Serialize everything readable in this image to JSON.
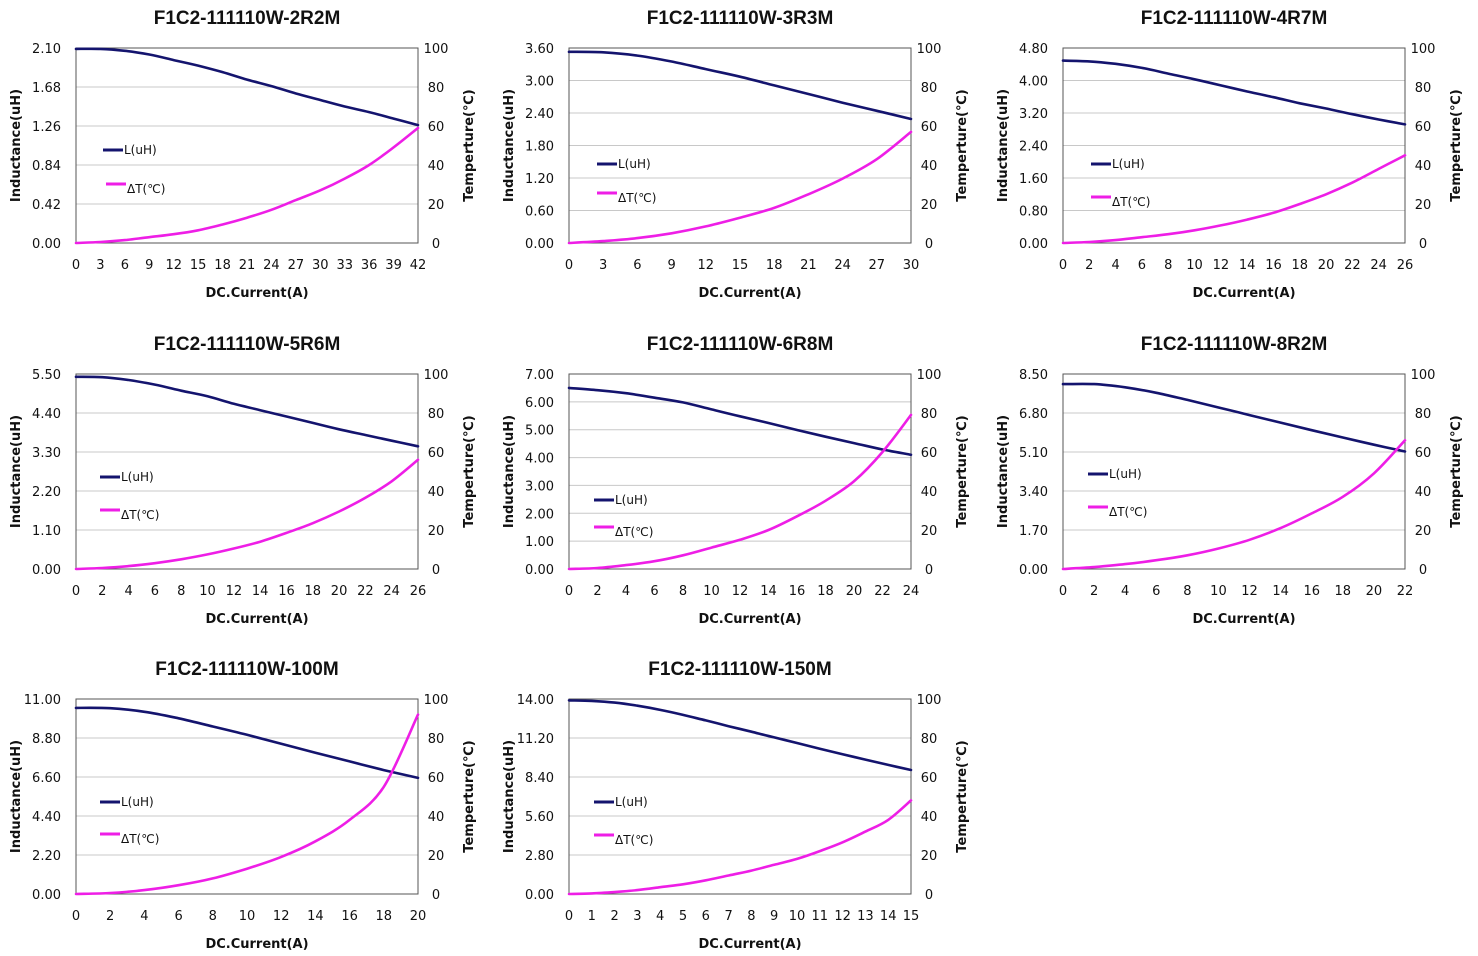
{
  "colors": {
    "inductance": "#14146e",
    "temperature": "#ee1ee6"
  },
  "common": {
    "xlabel": "DC.Current(A)",
    "ylabel": "Inductance(uH)",
    "y2label": "Temperture(℃)",
    "legend_l": "L(uH)",
    "legend_t": "ΔT(℃)",
    "y2ticks": [
      "0",
      "20",
      "40",
      "60",
      "80",
      "100"
    ]
  },
  "chart_data": [
    {
      "type": "line",
      "title": "F1C2-111110W-2R2M",
      "xlabel": "DC.Current(A)",
      "ylabel": "Inductance(uH)",
      "y2label": "Temperture(℃)",
      "xlim": [
        0,
        42
      ],
      "ylim": [
        0,
        2.1
      ],
      "y2lim": [
        0,
        100
      ],
      "xticks": [
        "0",
        "3",
        "6",
        "9",
        "12",
        "15",
        "18",
        "21",
        "24",
        "27",
        "30",
        "33",
        "36",
        "39",
        "42"
      ],
      "yticks": [
        "0.00",
        "0.42",
        "0.84",
        "1.26",
        "1.68",
        "2.10"
      ],
      "series": [
        {
          "name": "L(uH)",
          "axis": "left",
          "x": [
            0,
            3,
            6,
            9,
            12,
            15,
            18,
            21,
            24,
            27,
            30,
            33,
            36,
            39,
            42
          ],
          "y": [
            2.09,
            2.09,
            2.07,
            2.03,
            1.97,
            1.91,
            1.84,
            1.76,
            1.69,
            1.61,
            1.54,
            1.47,
            1.41,
            1.34,
            1.27
          ]
        },
        {
          "name": "ΔT(℃)",
          "axis": "right",
          "x": [
            0,
            3,
            6,
            9,
            12,
            15,
            18,
            21,
            24,
            27,
            30,
            33,
            36,
            39,
            42
          ],
          "y": [
            0,
            0.5,
            1.5,
            3,
            4.5,
            6.5,
            9.5,
            13,
            17,
            22,
            27,
            33,
            40,
            49,
            59
          ]
        }
      ]
    },
    {
      "type": "line",
      "title": "F1C2-111110W-3R3M",
      "xlabel": "DC.Current(A)",
      "ylabel": "Inductance(uH)",
      "y2label": "Temperture(℃)",
      "xlim": [
        0,
        30
      ],
      "ylim": [
        0,
        3.6
      ],
      "y2lim": [
        0,
        100
      ],
      "xticks": [
        "0",
        "3",
        "6",
        "9",
        "12",
        "15",
        "18",
        "21",
        "24",
        "27",
        "30"
      ],
      "yticks": [
        "0.00",
        "0.60",
        "1.20",
        "1.80",
        "2.40",
        "3.00",
        "3.60"
      ],
      "series": [
        {
          "name": "L(uH)",
          "axis": "left",
          "x": [
            0,
            3,
            6,
            9,
            12,
            15,
            18,
            21,
            24,
            27,
            30
          ],
          "y": [
            3.53,
            3.52,
            3.46,
            3.35,
            3.21,
            3.07,
            2.91,
            2.75,
            2.59,
            2.44,
            2.29
          ]
        },
        {
          "name": "ΔT(℃)",
          "axis": "right",
          "x": [
            0,
            3,
            6,
            9,
            12,
            15,
            18,
            21,
            24,
            27,
            30
          ],
          "y": [
            0,
            1,
            2.5,
            5,
            8.5,
            13,
            18,
            25,
            33,
            43,
            57
          ]
        }
      ]
    },
    {
      "type": "line",
      "title": "F1C2-111110W-4R7M",
      "xlabel": "DC.Current(A)",
      "ylabel": "Inductance(uH)",
      "y2label": "Temperture(℃)",
      "xlim": [
        0,
        26
      ],
      "ylim": [
        0,
        4.8
      ],
      "y2lim": [
        0,
        100
      ],
      "xticks": [
        "0",
        "2",
        "4",
        "6",
        "8",
        "10",
        "12",
        "14",
        "16",
        "18",
        "20",
        "22",
        "24",
        "26"
      ],
      "yticks": [
        "0.00",
        "0.80",
        "1.60",
        "2.40",
        "3.20",
        "4.00",
        "4.80"
      ],
      "series": [
        {
          "name": "L(uH)",
          "axis": "left",
          "x": [
            0,
            2,
            4,
            6,
            8,
            10,
            12,
            14,
            16,
            18,
            20,
            22,
            24,
            26
          ],
          "y": [
            4.49,
            4.47,
            4.41,
            4.31,
            4.17,
            4.03,
            3.88,
            3.73,
            3.59,
            3.44,
            3.31,
            3.17,
            3.04,
            2.92
          ]
        },
        {
          "name": "ΔT(℃)",
          "axis": "right",
          "x": [
            0,
            2,
            4,
            6,
            8,
            10,
            12,
            14,
            16,
            18,
            20,
            22,
            24,
            26
          ],
          "y": [
            0,
            0.5,
            1.5,
            3,
            4.5,
            6.5,
            9,
            12,
            15.5,
            20,
            25,
            31,
            38,
            45
          ]
        }
      ]
    },
    {
      "type": "line",
      "title": "F1C2-111110W-5R6M",
      "xlabel": "DC.Current(A)",
      "ylabel": "Inductance(uH)",
      "y2label": "Temperture(℃)",
      "xlim": [
        0,
        26
      ],
      "ylim": [
        0,
        5.5
      ],
      "y2lim": [
        0,
        100
      ],
      "xticks": [
        "0",
        "2",
        "4",
        "6",
        "8",
        "10",
        "12",
        "14",
        "16",
        "18",
        "20",
        "22",
        "24",
        "26"
      ],
      "yticks": [
        "0.00",
        "1.10",
        "2.20",
        "3.30",
        "4.40",
        "5.50"
      ],
      "series": [
        {
          "name": "L(uH)",
          "axis": "left",
          "x": [
            0,
            2,
            4,
            6,
            8,
            10,
            12,
            14,
            16,
            18,
            20,
            22,
            24,
            26
          ],
          "y": [
            5.42,
            5.41,
            5.33,
            5.2,
            5.03,
            4.87,
            4.66,
            4.48,
            4.3,
            4.12,
            3.94,
            3.78,
            3.62,
            3.46
          ]
        },
        {
          "name": "ΔT(℃)",
          "axis": "right",
          "x": [
            0,
            2,
            4,
            6,
            8,
            10,
            12,
            14,
            16,
            18,
            20,
            22,
            24,
            26
          ],
          "y": [
            0,
            0.5,
            1.5,
            3,
            5,
            7.5,
            10.5,
            14,
            18.5,
            23.5,
            29.5,
            36.5,
            45,
            56
          ]
        }
      ]
    },
    {
      "type": "line",
      "title": "F1C2-111110W-6R8M",
      "xlabel": "DC.Current(A)",
      "ylabel": "Inductance(uH)",
      "y2label": "Temperture(℃)",
      "xlim": [
        0,
        24
      ],
      "ylim": [
        0,
        7
      ],
      "y2lim": [
        0,
        100
      ],
      "xticks": [
        "0",
        "2",
        "4",
        "6",
        "8",
        "10",
        "12",
        "14",
        "16",
        "18",
        "20",
        "22",
        "24"
      ],
      "yticks": [
        "0.00",
        "1.00",
        "2.00",
        "3.00",
        "4.00",
        "5.00",
        "6.00",
        "7.00"
      ],
      "series": [
        {
          "name": "L(uH)",
          "axis": "left",
          "x": [
            0,
            2,
            4,
            6,
            8,
            10,
            12,
            14,
            16,
            18,
            20,
            22,
            24
          ],
          "y": [
            6.5,
            6.42,
            6.31,
            6.15,
            5.98,
            5.73,
            5.48,
            5.24,
            4.99,
            4.75,
            4.52,
            4.29,
            4.1
          ]
        },
        {
          "name": "ΔT(℃)",
          "axis": "right",
          "x": [
            0,
            2,
            4,
            6,
            8,
            10,
            12,
            14,
            16,
            18,
            20,
            22,
            24
          ],
          "y": [
            0,
            0.5,
            2,
            4,
            7,
            11,
            15,
            20,
            27,
            35,
            45,
            60,
            79
          ]
        }
      ]
    },
    {
      "type": "line",
      "title": "F1C2-111110W-8R2M",
      "xlabel": "DC.Current(A)",
      "ylabel": "Inductance(uH)",
      "y2label": "Temperture(℃)",
      "xlim": [
        0,
        22
      ],
      "ylim": [
        0,
        8.5
      ],
      "y2lim": [
        0,
        100
      ],
      "xticks": [
        "0",
        "2",
        "4",
        "6",
        "8",
        "10",
        "12",
        "14",
        "16",
        "18",
        "20",
        "22"
      ],
      "yticks": [
        "0.00",
        "1.70",
        "3.40",
        "5.10",
        "6.80",
        "8.50"
      ],
      "series": [
        {
          "name": "L(uH)",
          "axis": "left",
          "x": [
            0,
            2,
            4,
            6,
            8,
            10,
            12,
            14,
            16,
            18,
            20,
            22
          ],
          "y": [
            8.06,
            8.06,
            7.92,
            7.68,
            7.37,
            7.04,
            6.71,
            6.38,
            6.05,
            5.73,
            5.42,
            5.12
          ]
        },
        {
          "name": "ΔT(℃)",
          "axis": "right",
          "x": [
            0,
            2,
            4,
            6,
            8,
            10,
            12,
            14,
            16,
            18,
            20,
            22
          ],
          "y": [
            0,
            1,
            2.5,
            4.5,
            7,
            10.5,
            15,
            21,
            28.5,
            37,
            49,
            66
          ]
        }
      ]
    },
    {
      "type": "line",
      "title": "F1C2-111110W-100M",
      "xlabel": "DC.Current(A)",
      "ylabel": "Inductance(uH)",
      "y2label": "Temperture(℃)",
      "xlim": [
        0,
        20
      ],
      "ylim": [
        0,
        11
      ],
      "y2lim": [
        0,
        100
      ],
      "xticks": [
        "0",
        "2",
        "4",
        "6",
        "8",
        "10",
        "12",
        "14",
        "16",
        "18",
        "20"
      ],
      "yticks": [
        "0.00",
        "2.20",
        "4.40",
        "6.60",
        "8.80",
        "11.00"
      ],
      "series": [
        {
          "name": "L(uH)",
          "axis": "left",
          "x": [
            0,
            2,
            4,
            6,
            8,
            10,
            12,
            14,
            16,
            18,
            20
          ],
          "y": [
            10.5,
            10.48,
            10.28,
            9.91,
            9.45,
            8.98,
            8.48,
            7.97,
            7.48,
            6.99,
            6.55
          ]
        },
        {
          "name": "ΔT(℃)",
          "axis": "right",
          "x": [
            0,
            2,
            4,
            6,
            8,
            10,
            12,
            14,
            16,
            18,
            20
          ],
          "y": [
            0,
            0.5,
            2,
            4.5,
            8,
            13,
            19,
            27,
            38,
            55,
            92
          ]
        }
      ]
    },
    {
      "type": "line",
      "title": "F1C2-111110W-150M",
      "xlabel": "DC.Current(A)",
      "ylabel": "Inductance(uH)",
      "y2label": "Temperture(℃)",
      "xlim": [
        0,
        15
      ],
      "ylim": [
        0,
        14
      ],
      "y2lim": [
        0,
        100
      ],
      "xticks": [
        "0",
        "1",
        "2",
        "3",
        "4",
        "5",
        "6",
        "7",
        "8",
        "9",
        "10",
        "11",
        "12",
        "13",
        "14",
        "15"
      ],
      "yticks": [
        "0.00",
        "2.80",
        "5.60",
        "8.40",
        "11.20",
        "14.00"
      ],
      "series": [
        {
          "name": "L(uH)",
          "axis": "left",
          "x": [
            0,
            1,
            2,
            3,
            4,
            5,
            6,
            7,
            8,
            9,
            10,
            11,
            12,
            13,
            14,
            15
          ],
          "y": [
            13.9,
            13.86,
            13.74,
            13.52,
            13.22,
            12.86,
            12.46,
            12.05,
            11.65,
            11.24,
            10.84,
            10.43,
            10.03,
            9.65,
            9.27,
            8.9
          ]
        },
        {
          "name": "ΔT(℃)",
          "axis": "right",
          "x": [
            0,
            1,
            2,
            3,
            4,
            5,
            6,
            7,
            8,
            9,
            10,
            11,
            12,
            13,
            14,
            15
          ],
          "y": [
            0,
            0.3,
            1,
            2,
            3.5,
            5,
            7,
            9.5,
            12,
            15,
            18,
            22,
            26.5,
            32,
            38,
            48
          ]
        }
      ]
    }
  ]
}
